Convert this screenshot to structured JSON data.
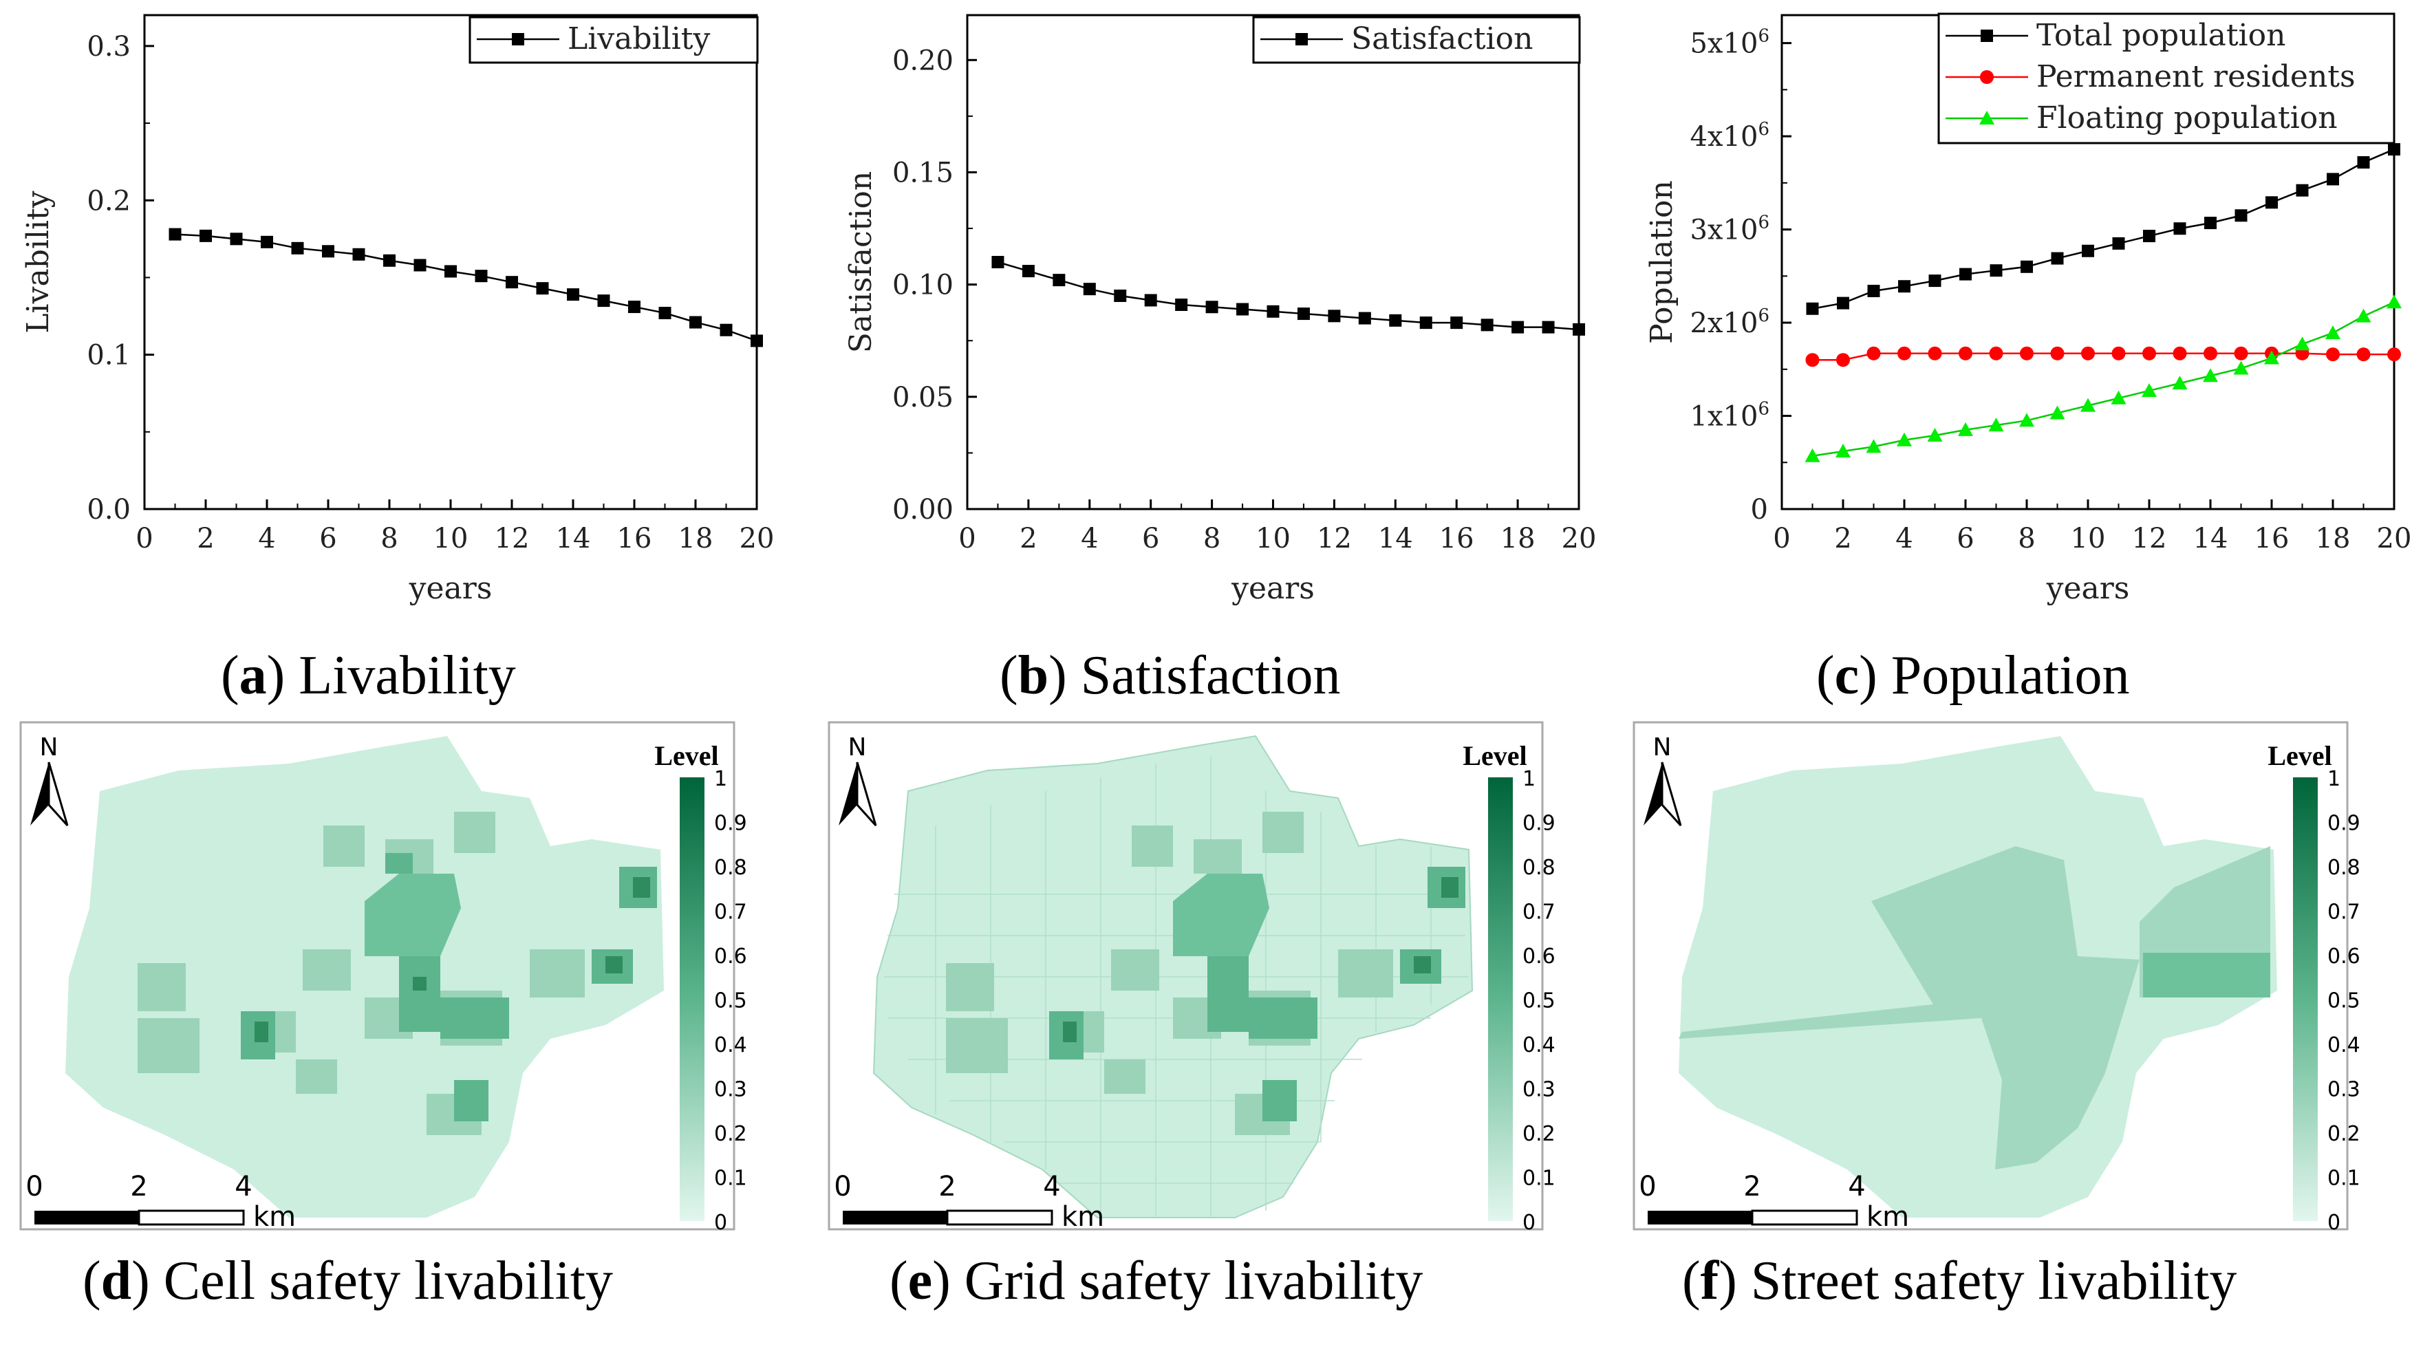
{
  "captions": {
    "a_letter": "a",
    "a_text": ") Livability",
    "b_letter": "b",
    "b_text": ") Satisfaction",
    "c_letter": "c",
    "c_text": ") Population",
    "d_letter": "d",
    "d_text": ") Cell safety livability",
    "e_letter": "e",
    "e_text": ") Grid safety livability",
    "f_letter": "f",
    "f_text": ") Street safety livability",
    "open_paren": "("
  },
  "chart_data": [
    {
      "id": "a",
      "type": "line",
      "title": "",
      "xlabel": "years",
      "ylabel": "Livability",
      "xlim": [
        0,
        20
      ],
      "ylim": [
        0,
        0.32
      ],
      "x_ticks": [
        "0",
        "2",
        "4",
        "6",
        "8",
        "10",
        "12",
        "14",
        "16",
        "18",
        "20"
      ],
      "y_ticks": [
        "0.0",
        "0.1",
        "0.2",
        "0.3"
      ],
      "legend_position": "top-right",
      "series": [
        {
          "name": "Livability",
          "color": "#000000",
          "marker": "square",
          "x": [
            1,
            2,
            3,
            4,
            5,
            6,
            7,
            8,
            9,
            10,
            11,
            12,
            13,
            14,
            15,
            16,
            17,
            18,
            19,
            20
          ],
          "values": [
            0.178,
            0.177,
            0.175,
            0.173,
            0.169,
            0.167,
            0.165,
            0.161,
            0.158,
            0.154,
            0.151,
            0.147,
            0.143,
            0.139,
            0.135,
            0.131,
            0.127,
            0.121,
            0.116,
            0.109
          ]
        }
      ]
    },
    {
      "id": "b",
      "type": "line",
      "title": "",
      "xlabel": "years",
      "ylabel": "Satisfaction",
      "xlim": [
        0,
        20
      ],
      "ylim": [
        0,
        0.22
      ],
      "x_ticks": [
        "0",
        "2",
        "4",
        "6",
        "8",
        "10",
        "12",
        "14",
        "16",
        "18",
        "20"
      ],
      "y_ticks": [
        "0.00",
        "0.05",
        "0.10",
        "0.15",
        "0.20"
      ],
      "legend_position": "top-right",
      "series": [
        {
          "name": "Satisfaction",
          "color": "#000000",
          "marker": "square",
          "x": [
            1,
            2,
            3,
            4,
            5,
            6,
            7,
            8,
            9,
            10,
            11,
            12,
            13,
            14,
            15,
            16,
            17,
            18,
            19,
            20
          ],
          "values": [
            0.11,
            0.106,
            0.102,
            0.098,
            0.095,
            0.093,
            0.091,
            0.09,
            0.089,
            0.088,
            0.087,
            0.086,
            0.085,
            0.084,
            0.083,
            0.083,
            0.082,
            0.081,
            0.081,
            0.08
          ]
        }
      ]
    },
    {
      "id": "c",
      "type": "line",
      "title": "",
      "xlabel": "years",
      "ylabel": "Population",
      "xlim": [
        0,
        20
      ],
      "ylim": [
        0,
        5300000
      ],
      "x_ticks": [
        "0",
        "2",
        "4",
        "6",
        "8",
        "10",
        "12",
        "14",
        "16",
        "18",
        "20"
      ],
      "y_ticks": [
        "0",
        "1x10",
        "2x10",
        "3x10",
        "4x10",
        "5x10"
      ],
      "y_tick_exponent": "6",
      "legend_position": "top-right",
      "series": [
        {
          "name": "Total population",
          "color": "#000000",
          "marker": "square",
          "x": [
            1,
            2,
            3,
            4,
            5,
            6,
            7,
            8,
            9,
            10,
            11,
            12,
            13,
            14,
            15,
            16,
            17,
            18,
            19,
            20
          ],
          "values": [
            2150000,
            2210000,
            2340000,
            2390000,
            2450000,
            2520000,
            2560000,
            2600000,
            2690000,
            2770000,
            2850000,
            2930000,
            3010000,
            3070000,
            3150000,
            3290000,
            3420000,
            3540000,
            3720000,
            3860000
          ]
        },
        {
          "name": "Permanent residents",
          "color": "#ff0000",
          "marker": "circle",
          "x": [
            1,
            2,
            3,
            4,
            5,
            6,
            7,
            8,
            9,
            10,
            11,
            12,
            13,
            14,
            15,
            16,
            17,
            18,
            19,
            20
          ],
          "values": [
            1600000,
            1600000,
            1670000,
            1670000,
            1670000,
            1670000,
            1670000,
            1670000,
            1670000,
            1670000,
            1670000,
            1670000,
            1670000,
            1670000,
            1670000,
            1670000,
            1670000,
            1660000,
            1660000,
            1660000
          ]
        },
        {
          "name": "Floating population",
          "color": "#00ee00",
          "marker": "triangle",
          "x": [
            1,
            2,
            3,
            4,
            5,
            6,
            7,
            8,
            9,
            10,
            11,
            12,
            13,
            14,
            15,
            16,
            17,
            18,
            19,
            20
          ],
          "values": [
            570000,
            620000,
            670000,
            740000,
            790000,
            850000,
            900000,
            950000,
            1030000,
            1110000,
            1190000,
            1270000,
            1350000,
            1430000,
            1510000,
            1620000,
            1770000,
            1890000,
            2070000,
            2220000
          ]
        }
      ]
    }
  ],
  "maps": [
    {
      "id": "d",
      "north": "N",
      "legend_title": "Level",
      "scale_ticks": [
        "0",
        "2",
        "4"
      ],
      "scale_unit": "km"
    },
    {
      "id": "e",
      "north": "N",
      "legend_title": "Level",
      "scale_ticks": [
        "0",
        "2",
        "4"
      ],
      "scale_unit": "km"
    },
    {
      "id": "f",
      "north": "N",
      "legend_title": "Level",
      "scale_ticks": [
        "0",
        "2",
        "4"
      ],
      "scale_unit": "km"
    }
  ],
  "level_ticks": [
    "1",
    "0.9",
    "0.8",
    "0.7",
    "0.6",
    "0.5",
    "0.4",
    "0.3",
    "0.2",
    "0.1",
    "0"
  ],
  "colors": {
    "level_high": "#00703c",
    "level_low": "#d8f3e8",
    "map_base": "#cdeee0",
    "map_mid": "#9fd4bb",
    "map_dark": "#3a9a6e"
  }
}
